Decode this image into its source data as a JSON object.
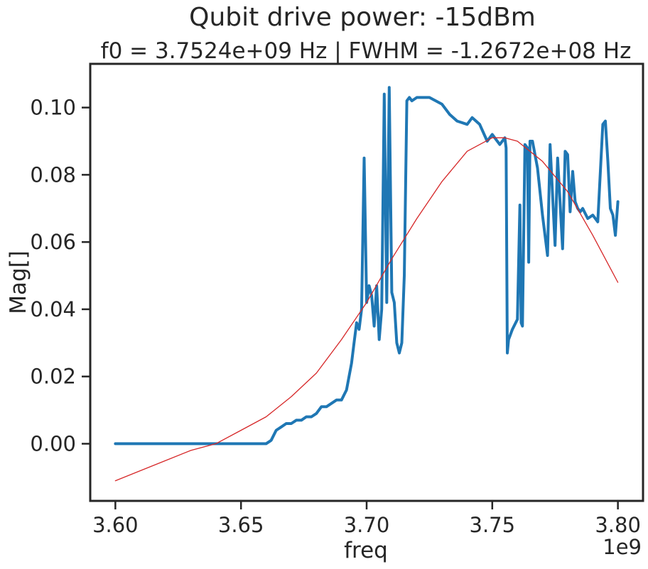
{
  "chart_data": {
    "type": "line",
    "title": "Qubit drive power: -15dBm",
    "subtitle": "f0 = 3.7524e+09 Hz | FWHM = -1.2672e+08 Hz",
    "xlabel": "freq",
    "ylabel": "Mag[]",
    "x_offset_label": "1e9",
    "xlim": [
      3.59,
      3.81
    ],
    "ylim": [
      -0.017,
      0.113
    ],
    "x_ticks": [
      {
        "value": 3.6,
        "label": "3.60"
      },
      {
        "value": 3.65,
        "label": "3.65"
      },
      {
        "value": 3.7,
        "label": "3.70"
      },
      {
        "value": 3.75,
        "label": "3.75"
      },
      {
        "value": 3.8,
        "label": "3.80"
      }
    ],
    "y_ticks": [
      {
        "value": 0.0,
        "label": "0.00"
      },
      {
        "value": 0.02,
        "label": "0.02"
      },
      {
        "value": 0.04,
        "label": "0.04"
      },
      {
        "value": 0.06,
        "label": "0.06"
      },
      {
        "value": 0.08,
        "label": "0.08"
      },
      {
        "value": 0.1,
        "label": "0.10"
      }
    ],
    "grid": false,
    "series": [
      {
        "color": "#1f77b4",
        "style": "data",
        "x": [
          3.6,
          3.605,
          3.61,
          3.615,
          3.62,
          3.625,
          3.63,
          3.635,
          3.64,
          3.645,
          3.65,
          3.655,
          3.66,
          3.662,
          3.664,
          3.666,
          3.668,
          3.67,
          3.672,
          3.674,
          3.676,
          3.678,
          3.68,
          3.682,
          3.684,
          3.686,
          3.688,
          3.69,
          3.692,
          3.694,
          3.695,
          3.696,
          3.697,
          3.698,
          3.699,
          3.7,
          3.701,
          3.702,
          3.703,
          3.704,
          3.705,
          3.706,
          3.707,
          3.708,
          3.709,
          3.71,
          3.711,
          3.712,
          3.713,
          3.714,
          3.715,
          3.716,
          3.717,
          3.718,
          3.72,
          3.725,
          3.73,
          3.733,
          3.736,
          3.74,
          3.742,
          3.745,
          3.748,
          3.75,
          3.753,
          3.755,
          3.7555,
          3.756,
          3.7565,
          3.757,
          3.758,
          3.76,
          3.761,
          3.7615,
          3.762,
          3.763,
          3.764,
          3.7645,
          3.765,
          3.766,
          3.768,
          3.77,
          3.772,
          3.773,
          3.775,
          3.776,
          3.778,
          3.779,
          3.78,
          3.781,
          3.782,
          3.783,
          3.784,
          3.785,
          3.786,
          3.788,
          3.79,
          3.792,
          3.794,
          3.795,
          3.796,
          3.797,
          3.798,
          3.799,
          3.8
        ],
        "y": [
          0.0,
          0.0,
          0.0,
          0.0,
          0.0,
          0.0,
          0.0,
          0.0,
          0.0,
          0.0,
          0.0,
          0.0,
          0.0,
          0.001,
          0.004,
          0.005,
          0.006,
          0.006,
          0.007,
          0.007,
          0.008,
          0.008,
          0.009,
          0.011,
          0.011,
          0.012,
          0.013,
          0.013,
          0.016,
          0.024,
          0.03,
          0.036,
          0.034,
          0.04,
          0.085,
          0.042,
          0.047,
          0.044,
          0.035,
          0.047,
          0.031,
          0.04,
          0.104,
          0.042,
          0.106,
          0.045,
          0.042,
          0.03,
          0.027,
          0.03,
          0.05,
          0.102,
          0.103,
          0.102,
          0.103,
          0.103,
          0.101,
          0.098,
          0.096,
          0.095,
          0.097,
          0.095,
          0.09,
          0.092,
          0.089,
          0.091,
          0.088,
          0.027,
          0.031,
          0.032,
          0.034,
          0.037,
          0.071,
          0.036,
          0.035,
          0.089,
          0.088,
          0.054,
          0.09,
          0.09,
          0.082,
          0.068,
          0.056,
          0.089,
          0.059,
          0.085,
          0.058,
          0.087,
          0.086,
          0.069,
          0.081,
          0.072,
          0.07,
          0.069,
          0.07,
          0.067,
          0.068,
          0.066,
          0.095,
          0.096,
          0.084,
          0.07,
          0.068,
          0.062,
          0.072
        ]
      },
      {
        "color": "#d62728",
        "style": "fit",
        "x": [
          3.6,
          3.61,
          3.62,
          3.63,
          3.64,
          3.65,
          3.66,
          3.67,
          3.68,
          3.69,
          3.7,
          3.71,
          3.72,
          3.73,
          3.74,
          3.75,
          3.755,
          3.76,
          3.77,
          3.78,
          3.79,
          3.8
        ],
        "y": [
          -0.011,
          -0.008,
          -0.005,
          -0.002,
          0.0,
          0.004,
          0.008,
          0.014,
          0.021,
          0.031,
          0.042,
          0.055,
          0.067,
          0.078,
          0.087,
          0.091,
          0.091,
          0.09,
          0.084,
          0.075,
          0.062,
          0.048
        ]
      }
    ]
  }
}
